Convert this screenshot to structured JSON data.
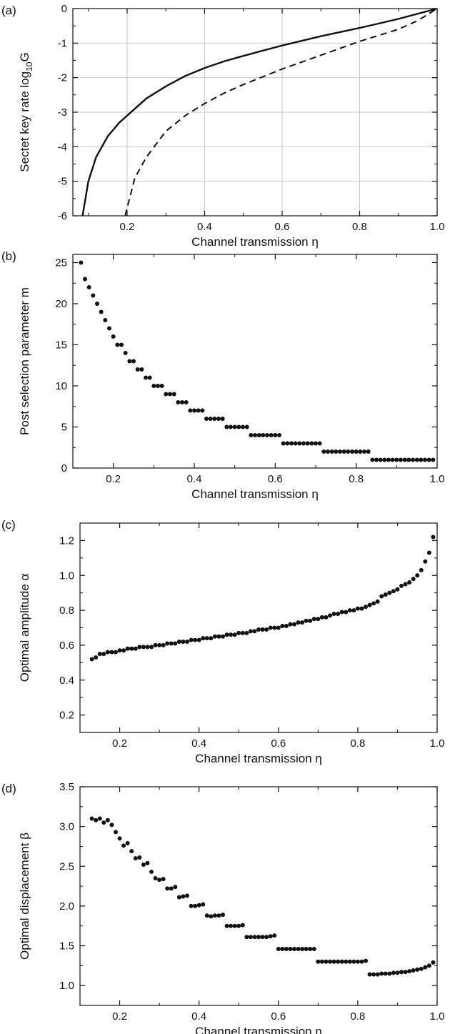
{
  "chart_data": [
    {
      "panel_label": "(a)",
      "type": "line",
      "xlabel": "Channel transmission η",
      "ylabel": "Sectet key rate log",
      "ylabel_sub": "10",
      "ylabel_tail": "G",
      "xlim": [
        0.06,
        1.0
      ],
      "ylim": [
        -6,
        0
      ],
      "xticks": [
        0.2,
        0.4,
        0.6,
        0.8,
        1.0
      ],
      "xtick_labels": [
        "0.2",
        "0.4",
        "0.6",
        "0.8",
        "1.0"
      ],
      "yticks": [
        0,
        -1,
        -2,
        -3,
        -4,
        -5,
        -6
      ],
      "ytick_labels": [
        "0",
        "-1",
        "-2",
        "-3",
        "-4",
        "-5",
        "-6"
      ],
      "grid": true,
      "series": [
        {
          "style": "solid",
          "x": [
            0.085,
            0.1,
            0.12,
            0.15,
            0.18,
            0.2,
            0.25,
            0.3,
            0.35,
            0.4,
            0.45,
            0.5,
            0.6,
            0.7,
            0.8,
            0.9,
            1.0
          ],
          "y": [
            -6.0,
            -5.0,
            -4.3,
            -3.7,
            -3.3,
            -3.1,
            -2.6,
            -2.25,
            -1.95,
            -1.72,
            -1.53,
            -1.37,
            -1.07,
            -0.8,
            -0.56,
            -0.3,
            0.0
          ]
        },
        {
          "style": "dashed",
          "x": [
            0.195,
            0.22,
            0.25,
            0.3,
            0.35,
            0.4,
            0.45,
            0.5,
            0.6,
            0.7,
            0.8,
            0.9,
            0.95,
            1.0
          ],
          "y": [
            -6.0,
            -4.9,
            -4.3,
            -3.55,
            -3.1,
            -2.75,
            -2.45,
            -2.2,
            -1.75,
            -1.35,
            -0.95,
            -0.6,
            -0.35,
            0.0
          ]
        }
      ]
    },
    {
      "panel_label": "(b)",
      "type": "scatter",
      "xlabel": "Channel transmission η",
      "ylabel": "Post selection parameter m",
      "xlim": [
        0.1,
        1.0
      ],
      "ylim": [
        0,
        26
      ],
      "xticks": [
        0.2,
        0.4,
        0.6,
        0.8,
        1.0
      ],
      "xtick_labels": [
        "0.2",
        "0.4",
        "0.6",
        "0.8",
        "1.0"
      ],
      "yticks": [
        0,
        5,
        10,
        15,
        20,
        25
      ],
      "ytick_labels": [
        "0",
        "5",
        "10",
        "15",
        "20",
        "25"
      ],
      "grid": false,
      "x": [
        0.12,
        0.13,
        0.14,
        0.15,
        0.16,
        0.17,
        0.18,
        0.19,
        0.2,
        0.21,
        0.22,
        0.23,
        0.24,
        0.25,
        0.26,
        0.27,
        0.28,
        0.29,
        0.3,
        0.31,
        0.32,
        0.33,
        0.34,
        0.35,
        0.36,
        0.37,
        0.38,
        0.39,
        0.4,
        0.41,
        0.42,
        0.43,
        0.44,
        0.45,
        0.46,
        0.47,
        0.48,
        0.49,
        0.5,
        0.51,
        0.52,
        0.53,
        0.54,
        0.55,
        0.56,
        0.57,
        0.58,
        0.59,
        0.6,
        0.61,
        0.62,
        0.63,
        0.64,
        0.65,
        0.66,
        0.67,
        0.68,
        0.69,
        0.7,
        0.71,
        0.72,
        0.73,
        0.74,
        0.75,
        0.76,
        0.77,
        0.78,
        0.79,
        0.8,
        0.81,
        0.82,
        0.83,
        0.84,
        0.85,
        0.86,
        0.87,
        0.88,
        0.89,
        0.9,
        0.91,
        0.92,
        0.93,
        0.94,
        0.95,
        0.96,
        0.97,
        0.98,
        0.99
      ],
      "y": [
        25,
        23,
        22,
        21,
        20,
        19,
        18,
        17,
        16,
        15,
        15,
        14,
        13,
        13,
        12,
        12,
        11,
        11,
        10,
        10,
        10,
        9,
        9,
        9,
        8,
        8,
        8,
        7,
        7,
        7,
        7,
        6,
        6,
        6,
        6,
        6,
        5,
        5,
        5,
        5,
        5,
        5,
        4,
        4,
        4,
        4,
        4,
        4,
        4,
        4,
        3,
        3,
        3,
        3,
        3,
        3,
        3,
        3,
        3,
        3,
        2,
        2,
        2,
        2,
        2,
        2,
        2,
        2,
        2,
        2,
        2,
        2,
        1,
        1,
        1,
        1,
        1,
        1,
        1,
        1,
        1,
        1,
        1,
        1,
        1,
        1,
        1,
        1
      ]
    },
    {
      "panel_label": "(c)",
      "type": "scatter",
      "xlabel": "Channel transmission η",
      "ylabel": "Optimal amplitude α",
      "xlim": [
        0.1,
        1.0
      ],
      "ylim": [
        0.1,
        1.3
      ],
      "xticks": [
        0.2,
        0.4,
        0.6,
        0.8,
        1.0
      ],
      "xtick_labels": [
        "0.2",
        "0.4",
        "0.6",
        "0.8",
        "1.0"
      ],
      "yticks": [
        0.2,
        0.4,
        0.6,
        0.8,
        1.0,
        1.2
      ],
      "ytick_labels": [
        "0.2",
        "0.4",
        "0.6",
        "0.8",
        "1.0",
        "1.2"
      ],
      "grid": false,
      "x": [
        0.13,
        0.14,
        0.15,
        0.16,
        0.17,
        0.18,
        0.19,
        0.2,
        0.21,
        0.22,
        0.23,
        0.24,
        0.25,
        0.26,
        0.27,
        0.28,
        0.29,
        0.3,
        0.31,
        0.32,
        0.33,
        0.34,
        0.35,
        0.36,
        0.37,
        0.38,
        0.39,
        0.4,
        0.41,
        0.42,
        0.43,
        0.44,
        0.45,
        0.46,
        0.47,
        0.48,
        0.49,
        0.5,
        0.51,
        0.52,
        0.53,
        0.54,
        0.55,
        0.56,
        0.57,
        0.58,
        0.59,
        0.6,
        0.61,
        0.62,
        0.63,
        0.64,
        0.65,
        0.66,
        0.67,
        0.68,
        0.69,
        0.7,
        0.71,
        0.72,
        0.73,
        0.74,
        0.75,
        0.76,
        0.77,
        0.78,
        0.79,
        0.8,
        0.81,
        0.82,
        0.83,
        0.84,
        0.85,
        0.86,
        0.87,
        0.88,
        0.89,
        0.9,
        0.91,
        0.92,
        0.93,
        0.94,
        0.95,
        0.96,
        0.97,
        0.98,
        0.99
      ],
      "y": [
        0.52,
        0.53,
        0.55,
        0.55,
        0.56,
        0.56,
        0.56,
        0.57,
        0.57,
        0.58,
        0.58,
        0.58,
        0.59,
        0.59,
        0.59,
        0.59,
        0.6,
        0.6,
        0.6,
        0.61,
        0.61,
        0.61,
        0.62,
        0.62,
        0.62,
        0.63,
        0.63,
        0.63,
        0.64,
        0.64,
        0.64,
        0.65,
        0.65,
        0.65,
        0.66,
        0.66,
        0.66,
        0.67,
        0.67,
        0.67,
        0.68,
        0.68,
        0.69,
        0.69,
        0.69,
        0.7,
        0.7,
        0.7,
        0.71,
        0.71,
        0.72,
        0.72,
        0.73,
        0.73,
        0.74,
        0.74,
        0.75,
        0.75,
        0.76,
        0.76,
        0.77,
        0.78,
        0.78,
        0.79,
        0.79,
        0.8,
        0.8,
        0.81,
        0.81,
        0.82,
        0.83,
        0.84,
        0.85,
        0.88,
        0.89,
        0.9,
        0.91,
        0.92,
        0.94,
        0.95,
        0.96,
        0.98,
        1.0,
        1.03,
        1.08,
        1.13,
        1.22
      ]
    },
    {
      "panel_label": "(d)",
      "type": "scatter",
      "xlabel": "Channel transmission η",
      "ylabel": "Optimal displacement β",
      "xlim": [
        0.1,
        1.0
      ],
      "ylim": [
        0.75,
        3.5
      ],
      "xticks": [
        0.2,
        0.4,
        0.6,
        0.8,
        1.0
      ],
      "xtick_labels": [
        "0.2",
        "0.4",
        "0.6",
        "0.8",
        "1.0"
      ],
      "yticks": [
        1.0,
        1.5,
        2.0,
        2.5,
        3.0,
        3.5
      ],
      "ytick_labels": [
        "1.0",
        "1.5",
        "2.0",
        "2.5",
        "3.0",
        "3.5"
      ],
      "grid": false,
      "x": [
        0.13,
        0.14,
        0.15,
        0.16,
        0.17,
        0.18,
        0.19,
        0.2,
        0.21,
        0.22,
        0.23,
        0.24,
        0.25,
        0.26,
        0.27,
        0.28,
        0.29,
        0.3,
        0.31,
        0.32,
        0.33,
        0.34,
        0.35,
        0.36,
        0.37,
        0.38,
        0.39,
        0.4,
        0.41,
        0.42,
        0.43,
        0.44,
        0.45,
        0.46,
        0.47,
        0.48,
        0.49,
        0.5,
        0.51,
        0.52,
        0.53,
        0.54,
        0.55,
        0.56,
        0.57,
        0.58,
        0.59,
        0.6,
        0.61,
        0.62,
        0.63,
        0.64,
        0.65,
        0.66,
        0.67,
        0.68,
        0.69,
        0.7,
        0.71,
        0.72,
        0.73,
        0.74,
        0.75,
        0.76,
        0.77,
        0.78,
        0.79,
        0.8,
        0.81,
        0.82,
        0.83,
        0.84,
        0.85,
        0.86,
        0.87,
        0.88,
        0.89,
        0.9,
        0.91,
        0.92,
        0.93,
        0.94,
        0.95,
        0.96,
        0.97,
        0.98,
        0.99
      ],
      "y": [
        3.1,
        3.08,
        3.1,
        3.05,
        3.08,
        3.02,
        2.93,
        2.85,
        2.76,
        2.79,
        2.69,
        2.6,
        2.61,
        2.52,
        2.54,
        2.43,
        2.35,
        2.33,
        2.34,
        2.22,
        2.22,
        2.24,
        2.11,
        2.12,
        2.13,
        2.0,
        2.0,
        2.01,
        2.02,
        1.88,
        1.87,
        1.88,
        1.88,
        1.89,
        1.75,
        1.75,
        1.75,
        1.75,
        1.76,
        1.61,
        1.61,
        1.61,
        1.61,
        1.61,
        1.61,
        1.62,
        1.63,
        1.46,
        1.46,
        1.46,
        1.46,
        1.46,
        1.46,
        1.46,
        1.46,
        1.46,
        1.46,
        1.3,
        1.3,
        1.3,
        1.3,
        1.3,
        1.3,
        1.3,
        1.3,
        1.3,
        1.3,
        1.3,
        1.3,
        1.31,
        1.14,
        1.14,
        1.14,
        1.15,
        1.15,
        1.15,
        1.16,
        1.16,
        1.17,
        1.17,
        1.18,
        1.19,
        1.2,
        1.21,
        1.23,
        1.25,
        1.29
      ]
    }
  ]
}
